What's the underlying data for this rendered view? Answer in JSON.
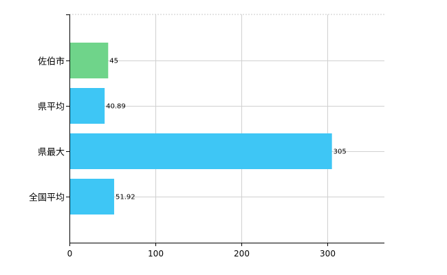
{
  "chart_data": {
    "type": "bar",
    "orientation": "horizontal",
    "categories": [
      "佐伯市",
      "県平均",
      "県最大",
      "全国平均"
    ],
    "values": [
      45,
      40.89,
      305,
      51.92
    ],
    "data_labels": [
      "45",
      "40.89",
      "305",
      "51.92"
    ],
    "colors": [
      "#6fd48a",
      "#3ec6f5",
      "#3ec6f5",
      "#3ec6f5"
    ],
    "xlim": [
      0,
      366
    ],
    "xticks": [
      0,
      100,
      200,
      300
    ],
    "xtick_labels": [
      "0",
      "100",
      "200",
      "300"
    ],
    "title": "",
    "xlabel": "",
    "ylabel": "",
    "grid": true,
    "legend": "none"
  }
}
